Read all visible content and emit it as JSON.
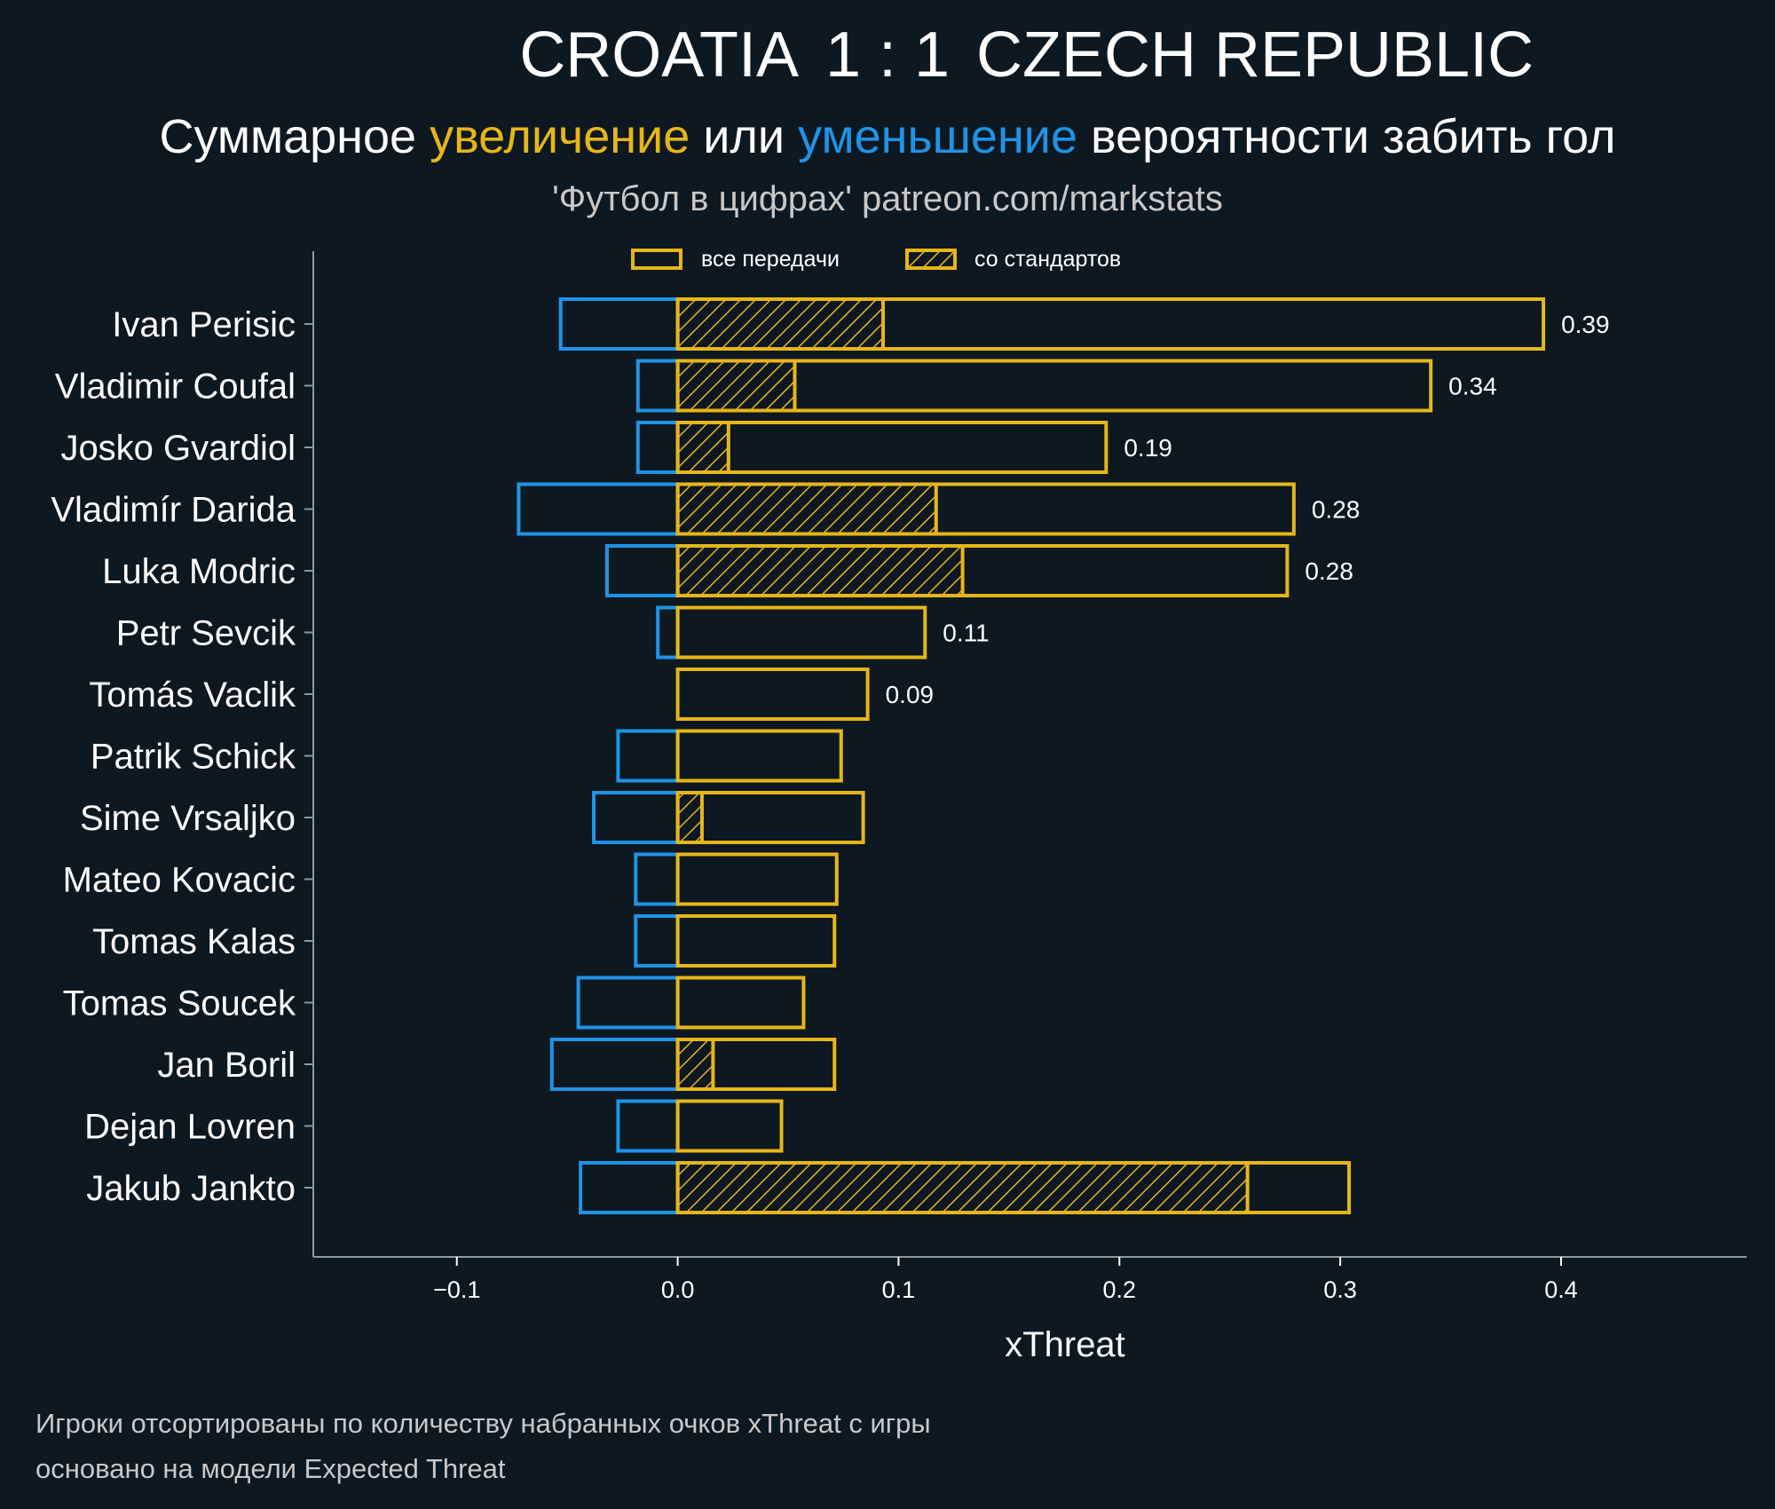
{
  "header": {
    "home_team": "CROATIA",
    "score": "1 : 1",
    "away_team": "CZECH REPUBLIC",
    "subtitle_parts": [
      "Суммарное ",
      "увеличение",
      " или ",
      "уменьшение",
      " вероятности забить гол"
    ],
    "credit": "'Футбол в цифрах' patreon.com/markstats"
  },
  "footer": {
    "line1": "Игроки отсортированы по количеству набранных очков xThreat с игры",
    "line2": "основано на модели Expected Threat"
  },
  "colors": {
    "background": "#0e1821",
    "positive": "#e6b619",
    "negative": "#1f93e6",
    "text": "#ffffff",
    "muted": "#c8c8c8",
    "spine": "#8a9a9a"
  },
  "chart_data": {
    "type": "bar",
    "orientation": "horizontal",
    "xlabel": "xThreat",
    "xlim": [
      -0.165,
      0.484
    ],
    "xticks": [
      -0.1,
      0.0,
      0.1,
      0.2,
      0.3,
      0.4
    ],
    "xtick_labels": [
      "−0.1",
      "0.0",
      "0.1",
      "0.2",
      "0.3",
      "0.4"
    ],
    "legend": {
      "placement": "top-center",
      "entries": [
        "все передачи",
        "со стандартов"
      ]
    },
    "categories": [
      "Ivan Perisic",
      "Vladimir Coufal",
      "Josko Gvardiol",
      "Vladimír Darida",
      "Luka Modric",
      "Petr Sevcik",
      "Tomás Vaclik",
      "Patrik Schick",
      "Sime Vrsaljko",
      "Mateo Kovacic",
      "Tomas Kalas",
      "Tomas Soucek",
      "Jan Boril",
      "Dejan Lovren",
      "Jakub Jankto"
    ],
    "series": [
      {
        "name": "все передачи (положительные)",
        "values": [
          0.392,
          0.341,
          0.194,
          0.279,
          0.276,
          0.112,
          0.086,
          0.074,
          0.084,
          0.072,
          0.071,
          0.057,
          0.071,
          0.047,
          0.304
        ]
      },
      {
        "name": "все передачи (отрицательные)",
        "values": [
          -0.053,
          -0.018,
          -0.018,
          -0.072,
          -0.032,
          -0.009,
          0,
          -0.027,
          -0.038,
          -0.019,
          -0.019,
          -0.045,
          -0.057,
          -0.027,
          -0.044
        ]
      },
      {
        "name": "со стандартов",
        "values": [
          0.093,
          0.053,
          0.023,
          0.117,
          0.129,
          0,
          0,
          0,
          0.011,
          0,
          0,
          0,
          0.016,
          0,
          0.258
        ]
      }
    ],
    "value_labels": [
      "0.39",
      "0.34",
      "0.19",
      "0.28",
      "0.28",
      "0.11",
      "0.09",
      null,
      null,
      null,
      null,
      null,
      null,
      null,
      null
    ]
  }
}
